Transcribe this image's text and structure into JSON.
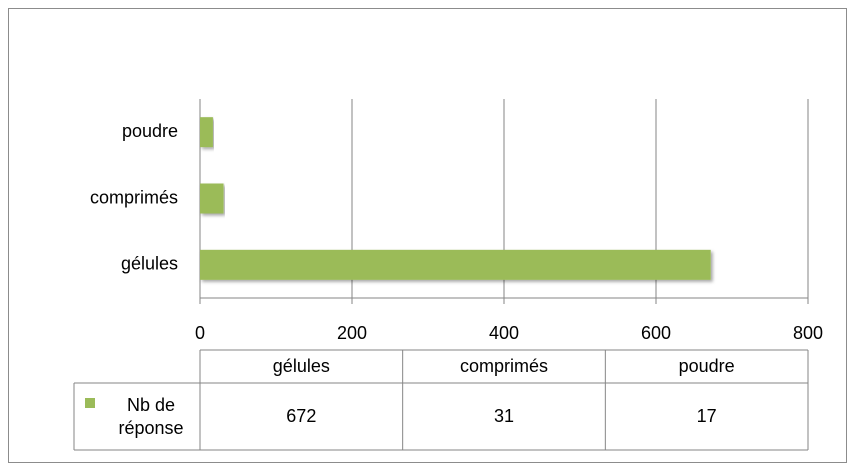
{
  "chart_data": {
    "type": "bar",
    "orientation": "horizontal",
    "categories": [
      "gélules",
      "comprimés",
      "poudre"
    ],
    "series": [
      {
        "name": "Nb de réponse",
        "color": "#9bbb59",
        "values": [
          672,
          31,
          17
        ]
      }
    ],
    "xlim": [
      0,
      800
    ],
    "xticks": [
      0,
      200,
      400,
      600,
      800
    ],
    "grid": true,
    "data_table": true
  }
}
